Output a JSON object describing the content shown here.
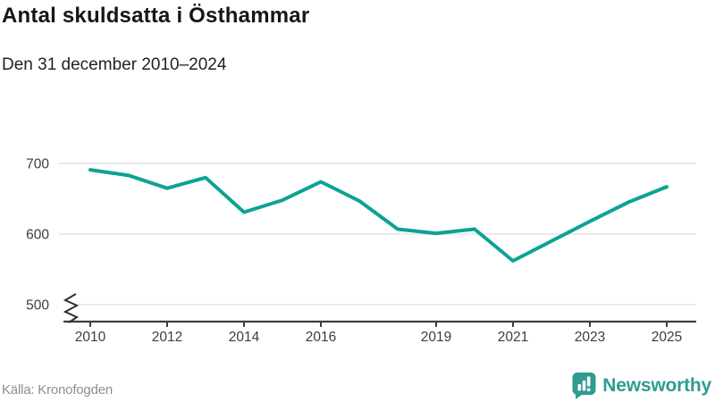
{
  "header": {
    "title": "Antal skuldsatta i Östhammar",
    "subtitle": "Den 31 december 2010–2024"
  },
  "chart_data": {
    "type": "line",
    "title": "Antal skuldsatta i Östhammar",
    "subtitle": "Den 31 december 2010–2024",
    "x": [
      2010,
      2011,
      2012,
      2013,
      2014,
      2015,
      2016,
      2017,
      2018,
      2019,
      2020,
      2021,
      2022,
      2023,
      2024,
      2025
    ],
    "values": [
      691,
      683,
      665,
      680,
      631,
      648,
      674,
      647,
      607,
      601,
      607,
      562,
      590,
      618,
      645,
      667
    ],
    "x_tick_labels": [
      "2010",
      "2012",
      "2014",
      "2016",
      "2019",
      "2021",
      "2023",
      "2025"
    ],
    "x_tick_years": [
      2010,
      2012,
      2014,
      2016,
      2019,
      2021,
      2023,
      2025
    ],
    "y_ticks": [
      700,
      600,
      500
    ],
    "ylim": [
      500,
      700
    ],
    "y_axis_break": true,
    "grid": "horizontal",
    "legend": "none",
    "line_color": "#0da294"
  },
  "footer": {
    "source": "Källa: Kronofogden",
    "brand": "Newsworthy"
  },
  "colors": {
    "accent_line": "#0da294",
    "brand_teal": "#2f9c91",
    "grid": "#e3e3e3",
    "axis": "#3f3f3f",
    "tick_text": "#3d3d3d",
    "title_text": "#161616",
    "source_text": "#8e8e8e"
  }
}
